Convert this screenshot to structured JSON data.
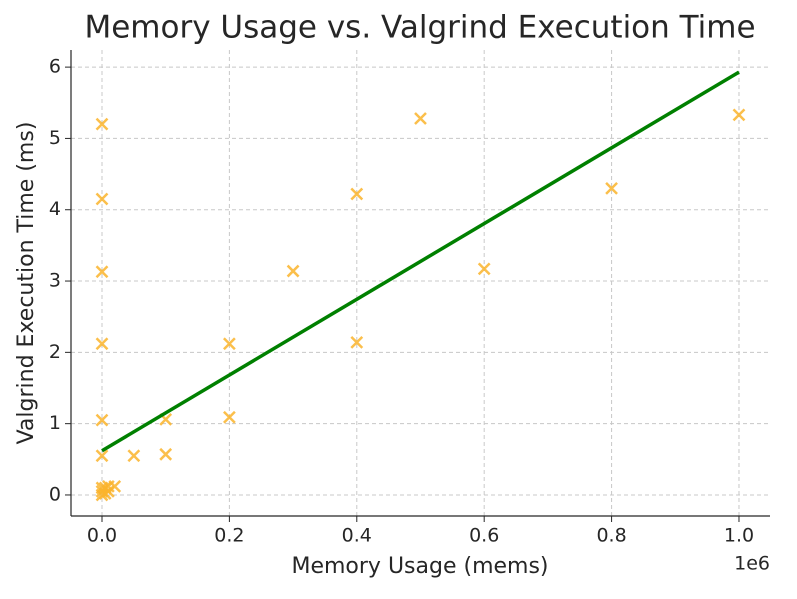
{
  "chart_data": {
    "type": "scatter",
    "title": "Memory Usage vs. Valgrind Execution Time",
    "xlabel": "Memory Usage (mems)",
    "ylabel": "Valgrind Execution Time (ms)",
    "x_offset_label": "1e6",
    "xlim": [
      -48666,
      1048700
    ],
    "ylim": [
      -0.295,
      6.24
    ],
    "xticks": [
      {
        "value": 0,
        "label": "0.0"
      },
      {
        "value": 200000,
        "label": "0.2"
      },
      {
        "value": 400000,
        "label": "0.4"
      },
      {
        "value": 600000,
        "label": "0.6"
      },
      {
        "value": 800000,
        "label": "0.8"
      },
      {
        "value": 1000000,
        "label": "1.0"
      }
    ],
    "yticks": [
      0,
      1,
      2,
      3,
      4,
      5,
      6
    ],
    "grid": true,
    "series": [
      {
        "color": "#fbb42c",
        "marker": "x",
        "x": [
          0,
          0,
          0,
          0,
          0,
          0,
          0,
          0,
          0,
          5000,
          10000,
          20000,
          5000,
          10000,
          50000,
          100000,
          100000,
          200000,
          200000,
          300000,
          400000,
          400000,
          500000,
          600000,
          800000,
          1000000
        ],
        "values": [
          5.2,
          4.15,
          3.13,
          2.12,
          1.05,
          0.55,
          0.1,
          0.0,
          0.05,
          0.1,
          0.12,
          0.12,
          0.02,
          0.05,
          0.55,
          0.57,
          1.06,
          2.12,
          1.09,
          3.14,
          4.22,
          2.14,
          5.28,
          3.17,
          4.3,
          5.33
        ]
      },
      {
        "color": "#008000",
        "marker": "line",
        "x": [
          0,
          1000000
        ],
        "values": [
          0.62,
          5.93
        ]
      }
    ]
  }
}
